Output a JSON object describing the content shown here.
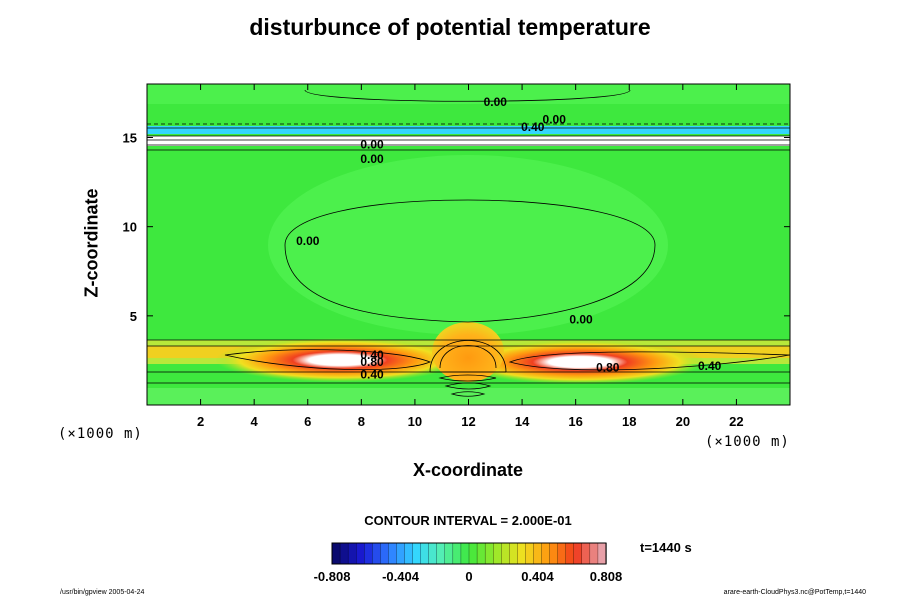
{
  "chart_data": {
    "type": "heatmap",
    "title": "disturbunce of potential temperature",
    "xlabel": "X-coordinate",
    "ylabel": "Z-coordinate",
    "x_unit": "(×1000 m)",
    "y_unit": "(×1000 m)",
    "xlim": [
      0,
      24
    ],
    "ylim": [
      0,
      18
    ],
    "x_ticks": [
      2,
      4,
      6,
      8,
      10,
      12,
      14,
      16,
      18,
      20,
      22
    ],
    "y_ticks": [
      5,
      10,
      15
    ],
    "contour_interval_text": "CONTOUR INTERVAL = 2.000E-01",
    "time_label": "t=1440 s",
    "colorbar": {
      "min": -0.808,
      "max": 0.808,
      "tick_labels": [
        "-0.808",
        "-0.404",
        "0",
        "0.404",
        "0.808"
      ],
      "tick_values": [
        -0.808,
        -0.404,
        0,
        0.404,
        0.808
      ],
      "colors": [
        "#0a0a6e",
        "#1a1ad8",
        "#2f7bff",
        "#33d6ff",
        "#55f0b0",
        "#3ee83e",
        "#9be82a",
        "#f0e020",
        "#ff9a10",
        "#f03a1c",
        "#e8a0a8"
      ]
    },
    "contour_labels": [
      {
        "text": "0.00",
        "x": 13.0,
        "z": 17.0
      },
      {
        "text": "0.00",
        "x": 15.2,
        "z": 16.0
      },
      {
        "text": "0.40",
        "x": 14.4,
        "z": 15.6
      },
      {
        "text": "0.00",
        "x": 8.4,
        "z": 14.6
      },
      {
        "text": "0.00",
        "x": 8.4,
        "z": 13.8
      },
      {
        "text": "0.00",
        "x": 6.0,
        "z": 9.2
      },
      {
        "text": "0.00",
        "x": 16.2,
        "z": 4.8
      },
      {
        "text": "0.40",
        "x": 8.4,
        "z": 2.8
      },
      {
        "text": "0.80",
        "x": 8.4,
        "z": 2.4
      },
      {
        "text": "0.40",
        "x": 8.4,
        "z": 1.7
      },
      {
        "text": "0.80",
        "x": 17.2,
        "z": 2.1
      },
      {
        "text": "0.40",
        "x": 21.0,
        "z": 2.2
      }
    ],
    "footer_left": "/usr/bin/gpview 2005-04-24",
    "footer_right": "arare-earth-CloudPhys3.nc@PotTemp,t=1440"
  }
}
